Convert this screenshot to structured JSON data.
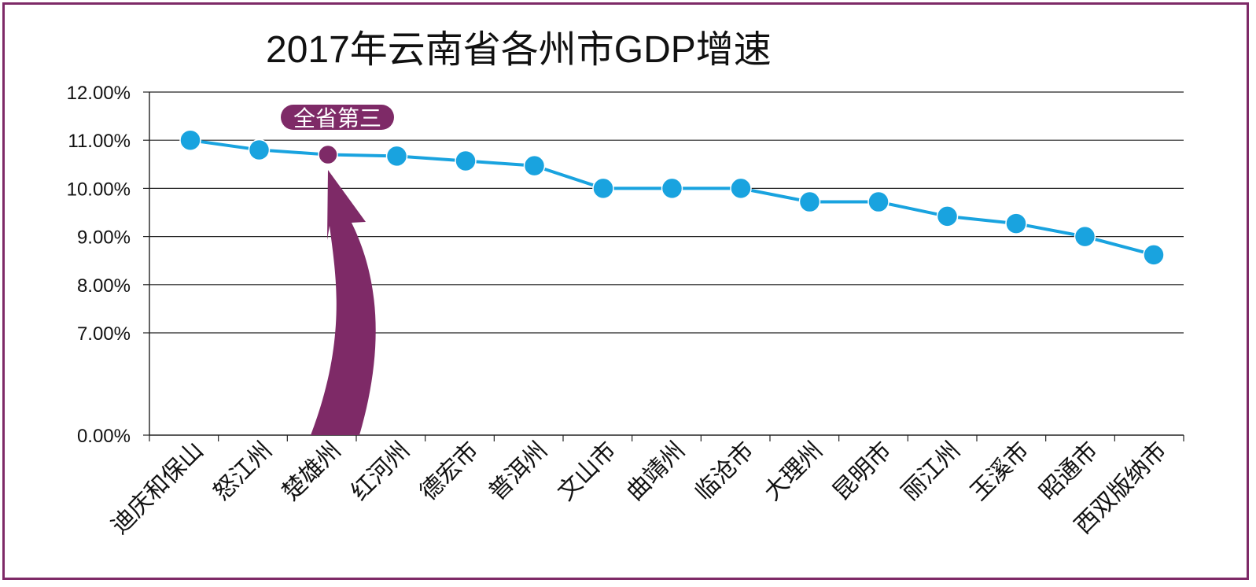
{
  "chart_data": {
    "type": "line",
    "title": "2017年云南省各州市GDP增速",
    "categories": [
      "迪庆和保山",
      "怒江州",
      "楚雄州",
      "红河州",
      "德宏市",
      "普洱州",
      "文山市",
      "曲靖州",
      "临沧市",
      "大理州",
      "昆明市",
      "丽江州",
      "玉溪市",
      "昭通市",
      "西双版纳市"
    ],
    "values": [
      11.0,
      10.8,
      10.7,
      10.67,
      10.57,
      10.47,
      10.0,
      10.0,
      10.0,
      9.72,
      9.72,
      9.42,
      9.27,
      9.0,
      8.62
    ],
    "y_ticks": [
      "0.00%",
      "7.00%",
      "8.00%",
      "9.00%",
      "10.00%",
      "11.00%",
      "12.00%"
    ],
    "y_tick_values": [
      0,
      7,
      8,
      9,
      10,
      11,
      12
    ],
    "highlight_index": 2,
    "callout": "全省第三",
    "colors": {
      "line": "#19a3df",
      "marker": "#19a3df",
      "highlight": "#7e2a67",
      "frame": "#7e2a67",
      "grid": "#222222"
    },
    "grid": true,
    "legend": "none",
    "xlabel": "",
    "ylabel": ""
  }
}
